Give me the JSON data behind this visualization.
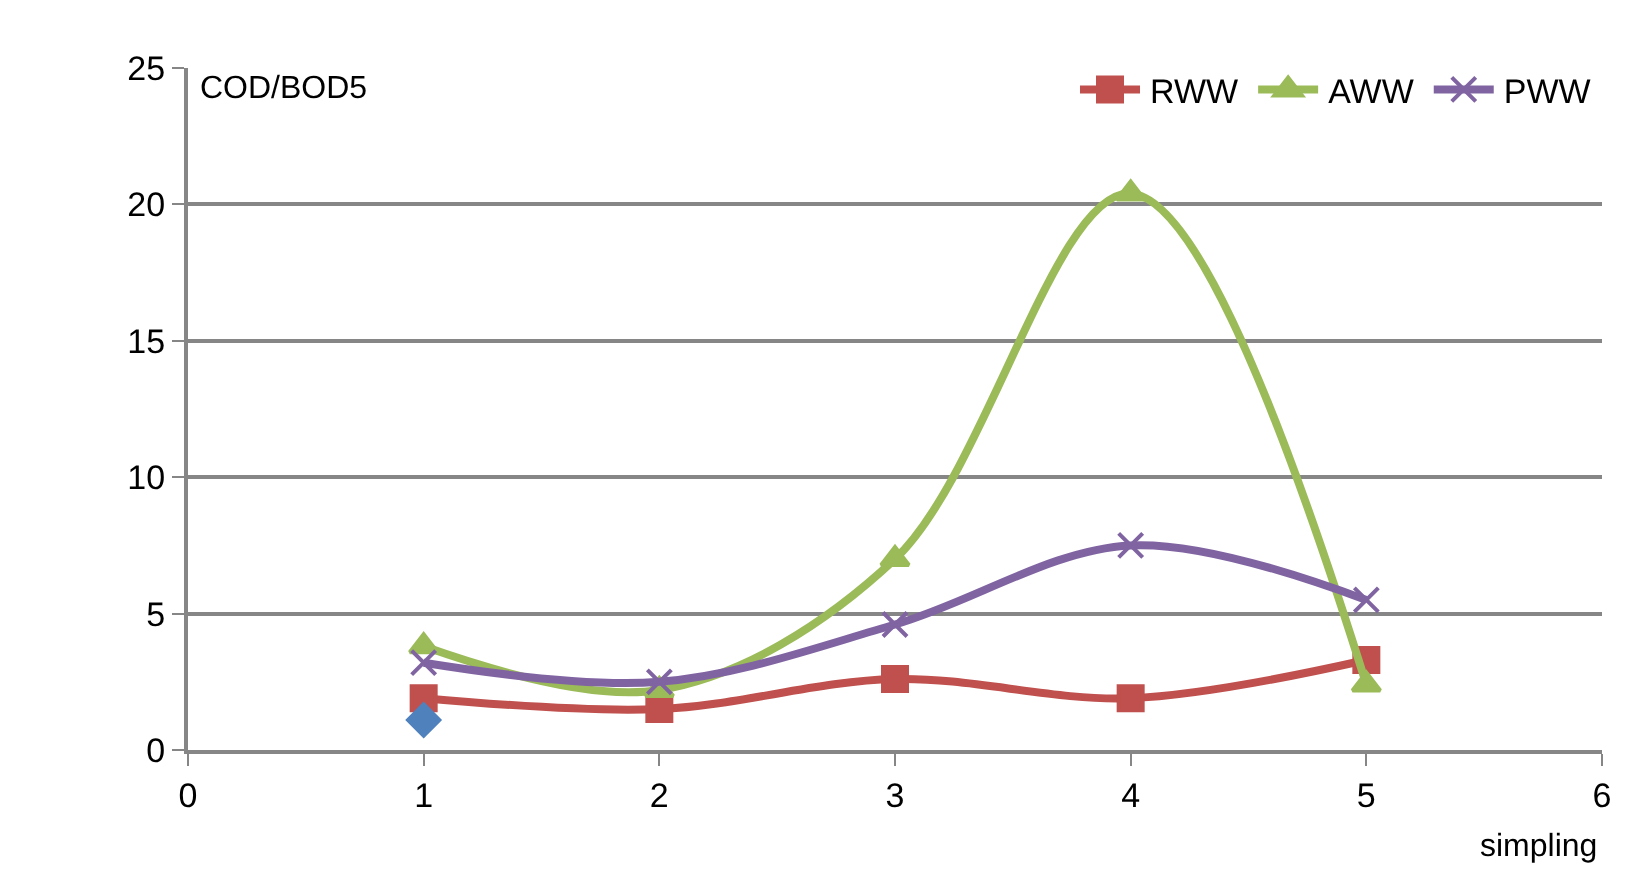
{
  "chart_data": {
    "type": "line",
    "xlabel": "simpling",
    "ylabel": "COD/BOD5",
    "x": [
      1,
      2,
      3,
      4,
      5
    ],
    "series": [
      {
        "name": "RWW",
        "color": "#c0504d",
        "marker": "square",
        "values": [
          1.9,
          1.5,
          2.6,
          1.9,
          3.3
        ]
      },
      {
        "name": "AWW",
        "color": "#9bbb59",
        "marker": "triangle",
        "values": [
          3.8,
          2.2,
          7.0,
          20.4,
          2.4
        ]
      },
      {
        "name": "PWW",
        "color": "#8064a2",
        "marker": "cross",
        "values": [
          3.2,
          2.5,
          4.6,
          7.5,
          5.5
        ]
      },
      {
        "type": "scatter",
        "color": "#4f81bd",
        "marker": "diamond",
        "x": [
          1
        ],
        "values": [
          1.1
        ]
      }
    ],
    "xlim": [
      0,
      6
    ],
    "xticks": [
      0,
      1,
      2,
      3,
      4,
      5,
      6
    ],
    "ylim": [
      0,
      25
    ],
    "yticks": [
      0,
      5,
      10,
      15,
      20,
      25
    ],
    "grid": "y",
    "legend": "top right"
  }
}
